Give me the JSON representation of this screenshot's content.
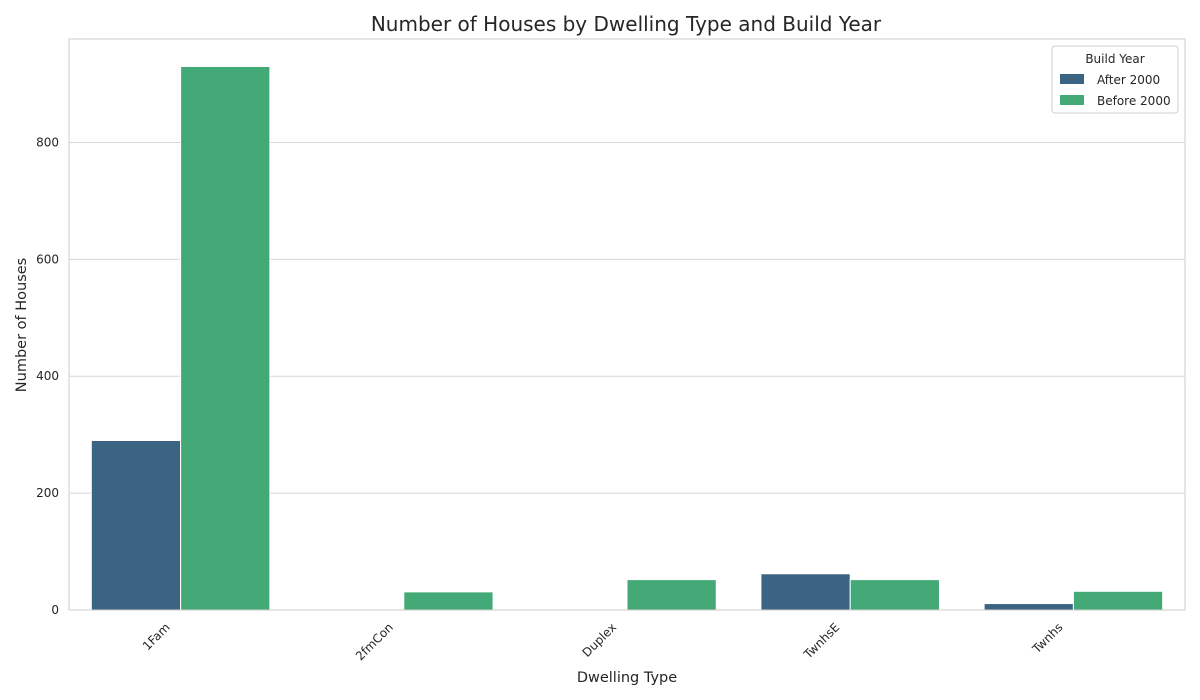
{
  "chart_data": {
    "type": "bar",
    "title": "Number of Houses by Dwelling Type and Build Year",
    "xlabel": "Dwelling Type",
    "ylabel": "Number of Houses",
    "categories": [
      "1Fam",
      "2fmCon",
      "Duplex",
      "TwnhsE",
      "Twnhs"
    ],
    "series": [
      {
        "name": "After 2000",
        "color": "#3b6382",
        "values": [
          290,
          0,
          0,
          62,
          11
        ]
      },
      {
        "name": "Before 2000",
        "color": "#43aa77",
        "values": [
          930,
          31,
          52,
          52,
          32
        ]
      }
    ],
    "ylim": [
      0,
      977
    ],
    "yticks": [
      0,
      200,
      400,
      600,
      800
    ],
    "grid": "y",
    "legend": {
      "title": "Build Year",
      "position": "top-right"
    }
  }
}
